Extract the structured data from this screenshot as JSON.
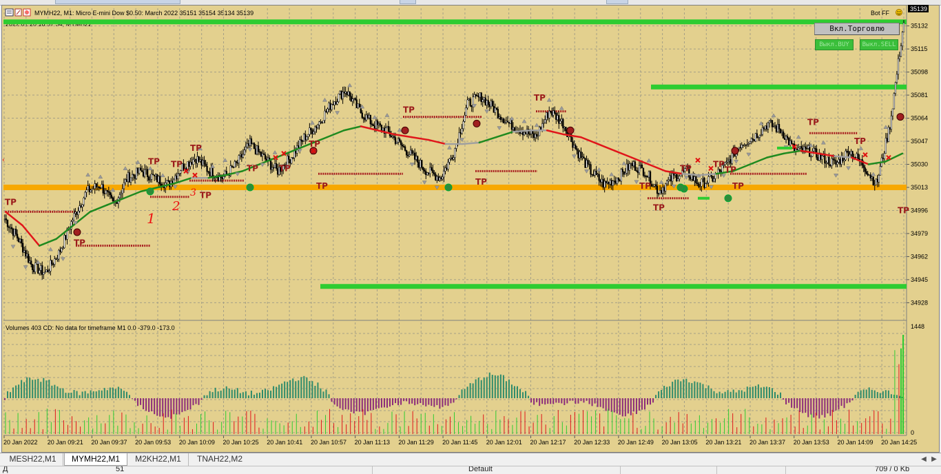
{
  "chart_header": {
    "title": "MYMH22, M1:  Micro E-mini Dow $0.50: March 2022  35151 35154 35134 35139",
    "subtitle": "2022.01.20 18:57:54; MYMH22",
    "ea_name": "Bot FF",
    "current_price": "35139"
  },
  "buttons": {
    "trade_on": "Вкл.Торговлю",
    "buy_off": "Выкл.BUY",
    "sell_off": "Выкл.SELL"
  },
  "indicator_label": "Volumes 403 CD: No data for timeframe M1 0.0 -379.0 -173.0",
  "annotations": {
    "tp_label": "TP",
    "handwritten": [
      "1",
      "2",
      "3"
    ]
  },
  "tabs": [
    "MESH22,M1",
    "MYMH22,M1",
    "M2KH22,M1",
    "TNAH22,M2"
  ],
  "tab_nav": {
    "prev": "◀",
    "next": "▶"
  },
  "status": {
    "left": "Д",
    "mid": "51",
    "profile": "Default",
    "traffic": "709 / 0 Kb"
  },
  "colors": {
    "background": "#e3d08e",
    "grid": "#a49f86",
    "bull_candle": "#000000",
    "support_line": "#f7a800",
    "resistance_line": "#2ecc31",
    "ma_up": "#1f8a1f",
    "ma_down": "#e0151a",
    "ma_flat": "#a0a0a0",
    "tp_dots": "#a82020",
    "histo_pos": "#2e8b6b",
    "histo_neg": "#8b2a7a"
  },
  "chart_data": [
    {
      "type": "candlestick",
      "title": "MYMH22, M1",
      "ylim": [
        34915,
        35145
      ],
      "y_ticks": [
        35132,
        35115,
        35098,
        35081,
        35064,
        35047,
        35030,
        35013,
        34996,
        34979,
        34962,
        34945,
        34928
      ],
      "x_ticks": [
        "20 Jan 2022",
        "20 Jan 09:21",
        "20 Jan 09:37",
        "20 Jan 09:53",
        "20 Jan 10:09",
        "20 Jan 10:25",
        "20 Jan 10:41",
        "20 Jan 10:57",
        "20 Jan 11:13",
        "20 Jan 11:29",
        "20 Jan 11:45",
        "20 Jan 12:01",
        "20 Jan 12:17",
        "20 Jan 12:33",
        "20 Jan 12:49",
        "20 Jan 13:05",
        "20 Jan 13:21",
        "20 Jan 13:37",
        "20 Jan 13:53",
        "20 Jan 14:09",
        "20 Jan 14:25"
      ],
      "close_path": [
        34990,
        34975,
        34955,
        34950,
        34965,
        34990,
        35010,
        35015,
        35000,
        35020,
        35025,
        35020,
        35015,
        35028,
        35035,
        35025,
        35020,
        35030,
        35045,
        35035,
        35025,
        35035,
        35050,
        35060,
        35075,
        35085,
        35070,
        35060,
        35055,
        35045,
        35035,
        35025,
        35020,
        35040,
        35075,
        35080,
        35070,
        35060,
        35055,
        35050,
        35070,
        35060,
        35040,
        35025,
        35015,
        35020,
        35030,
        35025,
        35010,
        35020,
        35025,
        35015,
        35020,
        35030,
        35045,
        35050,
        35060,
        35055,
        35040,
        35040,
        35035,
        35030,
        35040,
        35030,
        35015,
        35060,
        35135
      ],
      "support_level": 35013,
      "resistance_levels": [
        35135,
        35087,
        34940
      ],
      "series": [
        {
          "name": "MA",
          "values": [
            34995,
            34985,
            34970,
            34975,
            34985,
            34995,
            35000,
            35005,
            35010,
            35013,
            35016,
            35020,
            35020,
            35022,
            35025,
            35030,
            35035,
            35040,
            35045,
            35050,
            35055,
            35058,
            35055,
            35052,
            35050,
            35048,
            35045,
            35045,
            35046,
            35050,
            35054,
            35055,
            35055,
            35052,
            35050,
            35045,
            35040,
            35035,
            35030,
            35025,
            35023,
            35022,
            35023,
            35025,
            35030,
            35035,
            35038,
            35040,
            35038,
            35036,
            35035,
            35030,
            35032,
            35038
          ]
        }
      ]
    },
    {
      "type": "bar",
      "title": "Volumes",
      "ylim": [
        0,
        1448
      ],
      "y_ticks": [
        1448,
        0
      ]
    }
  ]
}
